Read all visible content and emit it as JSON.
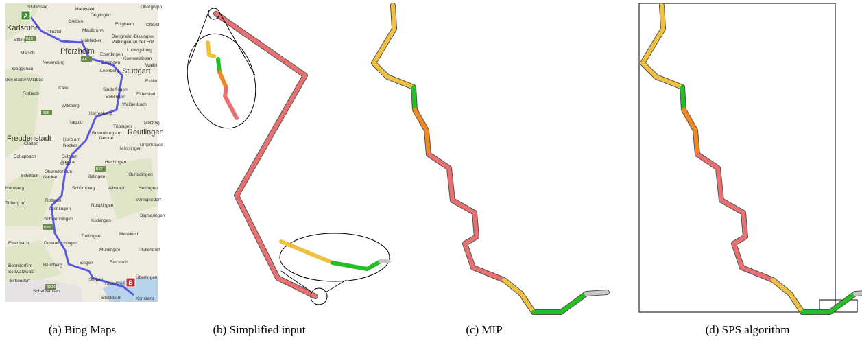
{
  "captions": [
    "(a) Bing Maps",
    "(b) Simplified input",
    "(c) MIP",
    "(d) SPS algorithm"
  ],
  "map": {
    "markers": [
      "A",
      "B"
    ],
    "labels": [
      "Karlsruhe",
      "Stutensee",
      "Hardwald",
      "Obergrupp",
      "Güglingen",
      "Bretten",
      "Erligheim",
      "Oberst",
      "Pfinztal",
      "Maulbronn",
      "Bietigheim-Bissingen",
      "Vaihingen an der Enz",
      "Ettlingen",
      "Mühlacker",
      "Pforzheim",
      "Malsch",
      "Ludwigsburg",
      "Eberdingen",
      "Kornwestheim",
      "Neuenbürg",
      "Ditzingen",
      "Waibli",
      "Gaggenau",
      "Leonberg",
      "Stuttgart",
      "den-Baden",
      "Wildbad",
      "Calw",
      "Esslin",
      "Sindelfingen",
      "Filderstadt",
      "Böblingen",
      "Forbach",
      "Waldenbuch",
      "Wildberg",
      "Herrenberg",
      "Metzing",
      "Nagold",
      "Tübingen",
      "Reutlingen",
      "Rottenburg am",
      "Neckar",
      "Freudenstadt",
      "Glatten",
      "Horb am",
      "Neckar",
      "Mössingen",
      "Unterhause",
      "Schapbach",
      "Sulz am",
      "Neckar",
      "Gruol",
      "Hechingen",
      "Schiltach",
      "Oberndorf am",
      "Neckar",
      "Balingen",
      "Burladingen",
      "Hettingen",
      "Schömberg",
      "Albstadt",
      "Hornberg",
      "Rottweil",
      "Veringendorf",
      "Nusplingen",
      "Triberg im",
      "Deißlingen",
      "Sigmaringen",
      "Schwenningen",
      "Kolbingen",
      "Tuttlingen",
      "Eisenbach",
      "Messkirch",
      "Donaueschingen",
      "Mühlingen",
      "Pfullendorf",
      "Engen",
      "Stockach",
      "Bonndorf im",
      "Schwarzwald",
      "Blumberg",
      "Singen",
      "Radolfzell",
      "Birkendorf",
      "Überlingen",
      "Schaffhausen",
      "Steckborn",
      "Konstanz",
      "B10",
      "A8",
      "B28",
      "B27",
      "B33",
      "B314"
    ]
  }
}
